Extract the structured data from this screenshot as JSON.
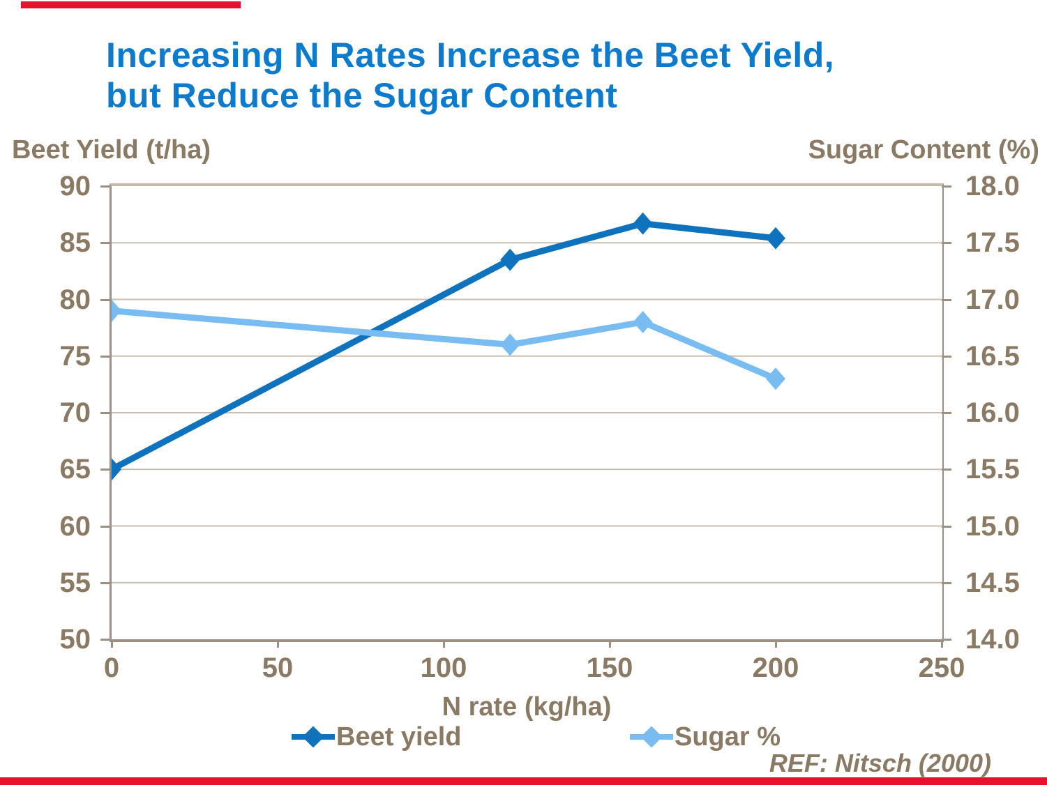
{
  "title": {
    "line1": "Increasing N Rates Increase the Beet Yield,",
    "line2": "but Reduce the Sugar Content"
  },
  "footer": {
    "ref": "REF: Nitsch (2000)"
  },
  "colors": {
    "title_blue": "#0d7bcd",
    "text_brown": "#8a7a64",
    "beet_blue": "#0f72bd",
    "sugar_blue": "#79bcf2",
    "gridline": "#c8bfb2",
    "axis_line": "#9c9082",
    "red_bar": "#e8112d"
  },
  "chart_data": {
    "type": "line",
    "title": "Increasing N Rates Increase the Beet Yield, but Reduce the Sugar Content",
    "xlabel": "N rate (kg/ha)",
    "ylabel_left": "Beet Yield (t/ha)",
    "ylabel_right": "Sugar Content (%)",
    "x": [
      0,
      120,
      160,
      200
    ],
    "series": [
      {
        "name": "Beet yield",
        "axis": "left",
        "color": "#0f72bd",
        "values": [
          65,
          83.5,
          86.7,
          85.4
        ]
      },
      {
        "name": "Sugar %",
        "axis": "right",
        "color": "#79bcf2",
        "values": [
          16.9,
          16.6,
          16.8,
          16.3
        ]
      }
    ],
    "x_range": [
      0,
      250
    ],
    "left_range": [
      50,
      90
    ],
    "right_range": [
      14,
      18
    ],
    "x_ticks": [
      "0",
      "50",
      "100",
      "150",
      "200",
      "250"
    ],
    "left_ticks": [
      "90",
      "85",
      "80",
      "75",
      "70",
      "65",
      "60",
      "55",
      "50"
    ],
    "right_ticks": [
      "18.0",
      "17.5",
      "17.0",
      "16.5",
      "16.0",
      "15.5",
      "15.0",
      "14.5",
      "14.0"
    ],
    "grid": true,
    "legend_position": "bottom",
    "marker": "diamond"
  }
}
